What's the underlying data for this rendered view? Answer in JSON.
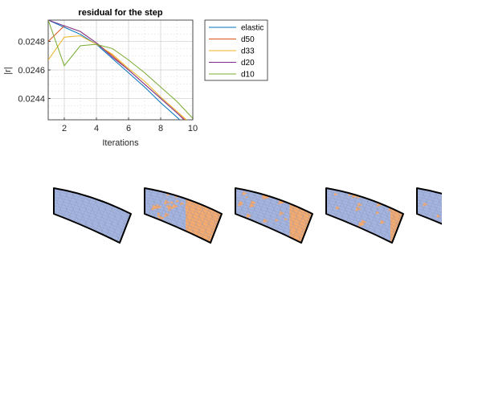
{
  "chart_data": {
    "type": "line",
    "title": "residual for the step",
    "xlabel": "Iterations",
    "ylabel": "|r|",
    "xlim": [
      1,
      10
    ],
    "ylim": [
      0.02425,
      0.02495
    ],
    "xticks": [
      2,
      4,
      6,
      8,
      10
    ],
    "yticks": [
      0.0244,
      0.0246,
      0.0248
    ],
    "ytick_labels": [
      "0.0244",
      "0.0246",
      "0.0248"
    ],
    "grid": true,
    "legend_position": "outside-right",
    "x": [
      1,
      2,
      3,
      4,
      5,
      6,
      7,
      8,
      9,
      10
    ],
    "series": [
      {
        "name": "elastic",
        "color": "#0072BD",
        "values": [
          0.02495,
          0.0249,
          0.02485,
          0.02478,
          0.02468,
          0.02458,
          0.02448,
          0.02437,
          0.02427,
          0.02416
        ]
      },
      {
        "name": "d50",
        "color": "#D95319",
        "values": [
          0.0248,
          0.02491,
          0.02487,
          0.02479,
          0.0247,
          0.0246,
          0.0245,
          0.0244,
          0.0243,
          0.0242
        ]
      },
      {
        "name": "d33",
        "color": "#EDB120",
        "values": [
          0.02467,
          0.02483,
          0.02484,
          0.02478,
          0.02471,
          0.02461,
          0.02452,
          0.02441,
          0.02431,
          0.02421
        ]
      },
      {
        "name": "d20",
        "color": "#7E2F8E",
        "values": [
          0.02495,
          0.02491,
          0.02487,
          0.02479,
          0.02469,
          0.0246,
          0.0245,
          0.0244,
          0.0243,
          0.02419
        ]
      },
      {
        "name": "d10",
        "color": "#77AC30",
        "values": [
          0.02495,
          0.02463,
          0.02477,
          0.02478,
          0.02475,
          0.02467,
          0.02458,
          0.02448,
          0.02438,
          0.02426
        ]
      }
    ]
  },
  "meshes": {
    "base_color": "#a4b4e0",
    "damage_color": "#f5aa6e",
    "outline_color": "#000000",
    "panels": [
      {
        "name": "mesh-elastic",
        "damage_fraction": 0.0
      },
      {
        "name": "mesh-d50",
        "damage_fraction": 0.5
      },
      {
        "name": "mesh-d33",
        "damage_fraction": 0.33
      },
      {
        "name": "mesh-d20",
        "damage_fraction": 0.2
      },
      {
        "name": "mesh-d10",
        "damage_fraction": 0.1
      }
    ]
  }
}
